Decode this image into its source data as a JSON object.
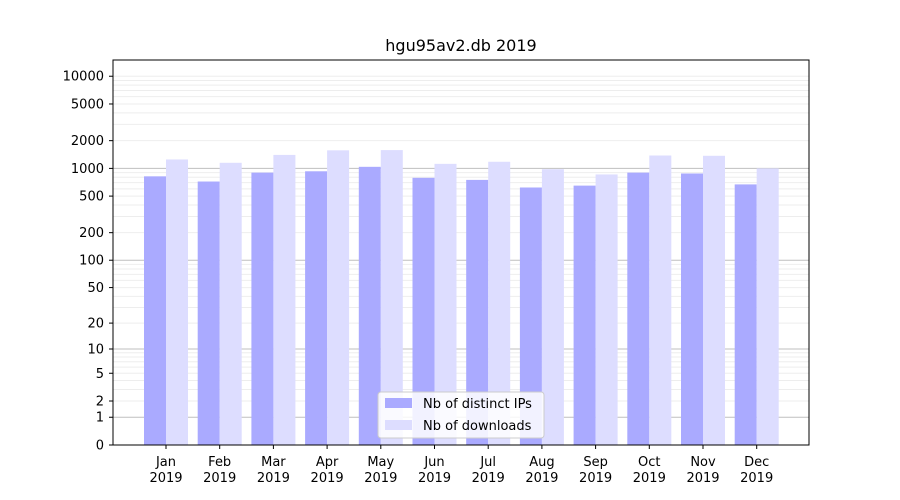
{
  "chart_data": {
    "type": "bar",
    "title": "hgu95av2.db 2019",
    "xlabel": "",
    "ylabel": "",
    "categories": [
      "Jan\n2019",
      "Feb\n2019",
      "Mar\n2019",
      "Apr\n2019",
      "May\n2019",
      "Jun\n2019",
      "Jul\n2019",
      "Aug\n2019",
      "Sep\n2019",
      "Oct\n2019",
      "Nov\n2019",
      "Dec\n2019"
    ],
    "series": [
      {
        "name": "Nb of distinct IPs",
        "color": "#aaaaff",
        "values": [
          820,
          720,
          900,
          930,
          1040,
          790,
          750,
          620,
          650,
          900,
          880,
          670
        ]
      },
      {
        "name": "Nb of downloads",
        "color": "#ddddff",
        "values": [
          1250,
          1150,
          1400,
          1570,
          1580,
          1120,
          1180,
          980,
          860,
          1380,
          1370,
          1000
        ]
      }
    ],
    "y_scale": "log(1+y)",
    "yticks": [
      0,
      1,
      2,
      5,
      10,
      20,
      50,
      100,
      200,
      500,
      1000,
      2000,
      5000,
      10000
    ],
    "ylim": [
      0,
      15000
    ],
    "major_gridlines": [
      1,
      10,
      100,
      1000
    ],
    "legend_position": "lower center",
    "grid": true
  }
}
